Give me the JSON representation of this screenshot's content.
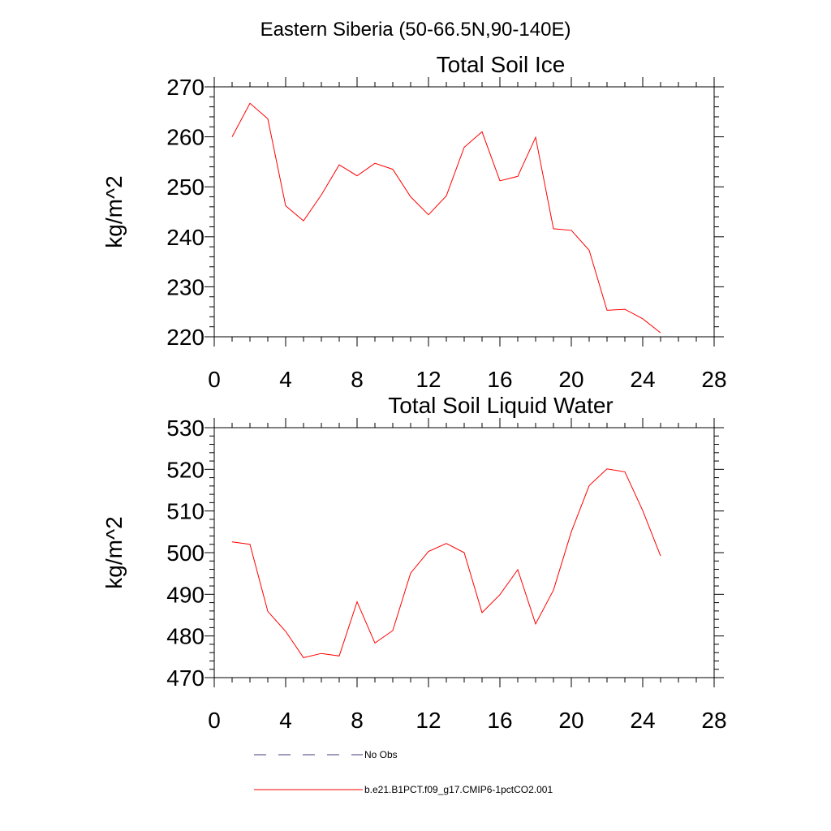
{
  "page": {
    "title": "Eastern Siberia (50-66.5N,90-140E)"
  },
  "chart_data": [
    {
      "type": "line",
      "title": "Total Soil Ice",
      "ylabel": "kg/m^2",
      "xlabel": "",
      "xlim": [
        0,
        28
      ],
      "ylim": [
        220,
        270
      ],
      "xticks": [
        0,
        4,
        8,
        12,
        16,
        20,
        24,
        28
      ],
      "yticks": [
        220,
        230,
        240,
        250,
        260,
        270
      ],
      "series": [
        {
          "name": "b.e21.B1PCT.f09_g17.CMIP6-1pctCO2.001",
          "color": "#ff0000",
          "x": [
            1,
            2,
            3,
            4,
            5,
            6,
            7,
            8,
            9,
            10,
            11,
            12,
            13,
            14,
            15,
            16,
            17,
            18,
            19,
            20,
            21,
            22,
            23,
            24,
            25
          ],
          "values": [
            260.0,
            266.7,
            263.6,
            246.2,
            243.2,
            248.4,
            254.4,
            252.2,
            254.7,
            253.5,
            248.0,
            244.4,
            248.2,
            257.9,
            261.0,
            251.2,
            252.1,
            259.9,
            241.6,
            241.3,
            237.3,
            225.3,
            225.5,
            223.6,
            220.8
          ]
        }
      ]
    },
    {
      "type": "line",
      "title": "Total Soil Liquid Water",
      "ylabel": "kg/m^2",
      "xlabel": "",
      "xlim": [
        0,
        28
      ],
      "ylim": [
        470,
        530
      ],
      "xticks": [
        0,
        4,
        8,
        12,
        16,
        20,
        24,
        28
      ],
      "yticks": [
        470,
        480,
        490,
        500,
        510,
        520,
        530
      ],
      "series": [
        {
          "name": "b.e21.B1PCT.f09_g17.CMIP6-1pctCO2.001",
          "color": "#ff0000",
          "x": [
            1,
            2,
            3,
            4,
            5,
            6,
            7,
            8,
            9,
            10,
            11,
            12,
            13,
            14,
            15,
            16,
            17,
            18,
            19,
            20,
            21,
            22,
            23,
            24,
            25
          ],
          "values": [
            502.6,
            502.0,
            485.9,
            481.1,
            474.8,
            475.8,
            475.2,
            488.2,
            478.3,
            481.3,
            495.1,
            500.3,
            502.2,
            500.0,
            485.6,
            489.9,
            495.9,
            482.9,
            491.0,
            505.0,
            516.1,
            520.1,
            519.4,
            510.1,
            499.2
          ]
        }
      ]
    }
  ],
  "legend": {
    "items": [
      {
        "label": "No Obs",
        "color": "#3d3d7a",
        "style": "dashed"
      },
      {
        "label": "b.e21.B1PCT.f09_g17.CMIP6-1pctCO2.001",
        "color": "#ff0000",
        "style": "solid"
      }
    ]
  }
}
